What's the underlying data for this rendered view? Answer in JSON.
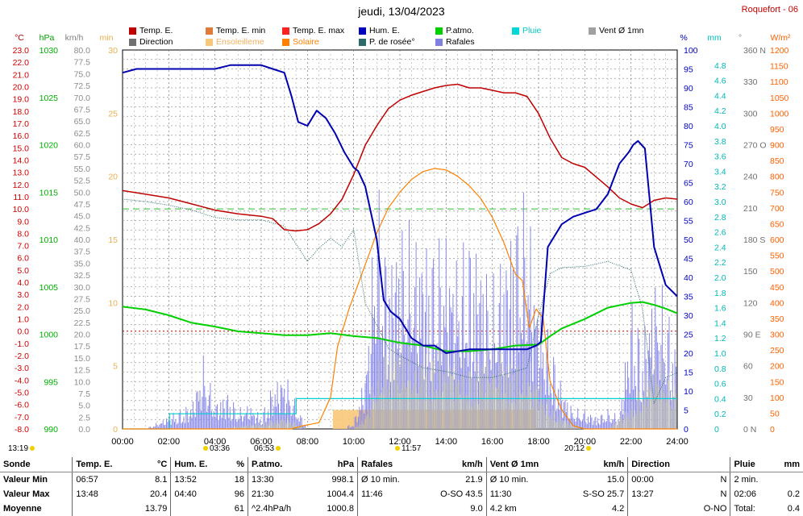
{
  "title": "jeudi, 13/04/2023",
  "station": "Roquefort - 06",
  "legend": [
    {
      "label": "Temp. E.",
      "color": "#c00000"
    },
    {
      "label": "Temp. E. min",
      "color": "#e07b39"
    },
    {
      "label": "Temp. E. max",
      "color": "#ff2020"
    },
    {
      "label": "Hum. E.",
      "color": "#0000c0"
    },
    {
      "label": "P.atmo.",
      "color": "#00d000"
    },
    {
      "label": "Pluie",
      "color": "#00d8d8"
    },
    {
      "label": "Vent Ø 1mn",
      "color": "#a0a0a0"
    },
    {
      "label": "Direction",
      "color": "#707070"
    },
    {
      "label": "Ensoleilleme",
      "color": "#f8c878"
    },
    {
      "label": "Solaire",
      "color": "#ff8000"
    },
    {
      "label": "P. de rosée°",
      "color": "#2a6a6a"
    },
    {
      "label": "Rafales",
      "color": "#8080e0"
    }
  ],
  "axes": {
    "temp_unit": "°C",
    "press_unit": "hPa",
    "wind_unit": "km/h",
    "min_unit": "min",
    "hum_unit": "%",
    "rain_unit": "mm",
    "dir_unit": "°",
    "solar_unit": "W/m²",
    "temp_ticks": [
      "23.0",
      "22.0",
      "21.0",
      "20.0",
      "19.0",
      "18.0",
      "17.0",
      "16.0",
      "15.0",
      "14.0",
      "13.0",
      "12.0",
      "11.0",
      "10.0",
      "9.0",
      "8.0",
      "7.0",
      "6.0",
      "5.0",
      "4.0",
      "3.0",
      "2.0",
      "1.0",
      "0.0",
      "-1.0",
      "-2.0",
      "-3.0",
      "-4.0",
      "-5.0",
      "-6.0",
      "-7.0",
      "-8.0"
    ],
    "press_ticks": [
      "1030",
      "1025",
      "1020",
      "1015",
      "1010",
      "1005",
      "1000",
      "995",
      "990"
    ],
    "wind_ticks": [
      "80.0",
      "77.5",
      "75.0",
      "72.5",
      "70.0",
      "67.5",
      "65.0",
      "62.5",
      "60.0",
      "57.5",
      "55.0",
      "52.5",
      "50.0",
      "47.5",
      "45.0",
      "42.5",
      "40.0",
      "37.5",
      "35.0",
      "32.5",
      "30.0",
      "27.5",
      "25.0",
      "22.5",
      "20.0",
      "17.5",
      "15.0",
      "12.5",
      "10.0",
      "7.5",
      "5.0",
      "2.5",
      "0.0"
    ],
    "min_ticks": [
      "30",
      "25",
      "20",
      "15",
      "10",
      "5",
      "0"
    ],
    "hum_ticks": [
      "100",
      "95",
      "90",
      "85",
      "80",
      "75",
      "70",
      "65",
      "60",
      "55",
      "50",
      "45",
      "40",
      "35",
      "30",
      "25",
      "20",
      "15",
      "10",
      "5",
      "0"
    ],
    "rain_ticks": [
      "4.8",
      "4.6",
      "4.4",
      "4.2",
      "4.0",
      "3.8",
      "3.6",
      "3.4",
      "3.2",
      "3.0",
      "2.8",
      "2.6",
      "2.4",
      "2.2",
      "2.0",
      "1.8",
      "1.6",
      "1.4",
      "1.2",
      "1.0",
      "0.8",
      "0.6",
      "0.4",
      "0.2",
      "0"
    ],
    "dir_ticks": [
      "360 N",
      "330",
      "300",
      "270 O",
      "240",
      "210",
      "180 S",
      "150",
      "120",
      "90 E",
      "60",
      "30",
      "0 N"
    ],
    "solar_ticks": [
      "1200",
      "1150",
      "1100",
      "1050",
      "1000",
      "950",
      "900",
      "850",
      "800",
      "750",
      "700",
      "650",
      "600",
      "550",
      "500",
      "450",
      "400",
      "350",
      "300",
      "250",
      "200",
      "150",
      "100",
      "50",
      "0"
    ],
    "time_ticks": [
      "00:00",
      "02:00",
      "04:00",
      "06:00",
      "08:00",
      "10:00",
      "12:00",
      "14:00",
      "16:00",
      "18:00",
      "20:00",
      "22:00",
      "24:00"
    ]
  },
  "sun": {
    "day_length": "13:19",
    "sunrise_marks": [
      {
        "label": "03:36"
      },
      {
        "label": "06:53"
      },
      {
        "label": "11:57"
      },
      {
        "label": "20:12"
      }
    ]
  },
  "chart_data": {
    "type": "line",
    "x_label": "",
    "x_range": [
      0,
      24
    ],
    "series": [
      {
        "name": "Temp. E.",
        "unit": "°C",
        "x": [
          0,
          1,
          2,
          3,
          4,
          5,
          6,
          6.5,
          7,
          7.5,
          8,
          8.5,
          9,
          9.5,
          10,
          10.5,
          11,
          11.5,
          12,
          12.5,
          13,
          13.5,
          14,
          14.5,
          15,
          15.5,
          16,
          16.5,
          17,
          17.5,
          18,
          18.5,
          19,
          19.5,
          20,
          20.5,
          21,
          21.5,
          22,
          22.5,
          23,
          23.5,
          24
        ],
        "y": [
          11.5,
          11.2,
          10.9,
          10.4,
          9.9,
          9.6,
          9.4,
          9.2,
          8.3,
          8.2,
          8.3,
          8.8,
          9.6,
          10.8,
          12.8,
          15.2,
          16.8,
          18.2,
          18.9,
          19.3,
          19.6,
          19.9,
          20.1,
          20.2,
          19.9,
          19.9,
          19.7,
          19.5,
          19.5,
          19.2,
          17.8,
          15.8,
          14.2,
          13.7,
          13.4,
          12.6,
          11.8,
          10.9,
          10.4,
          10.1,
          10.7,
          10.9,
          10.8
        ]
      },
      {
        "name": "Hum. E.",
        "unit": "%",
        "x": [
          0,
          0.6,
          1,
          2,
          3,
          4,
          4.66,
          5,
          6,
          6.5,
          7,
          7.3,
          7.6,
          8,
          8.4,
          8.8,
          9.2,
          9.6,
          10,
          10.2,
          10.5,
          11,
          11.3,
          11.6,
          12,
          12.5,
          13,
          13.5,
          14,
          15,
          16,
          17,
          17.5,
          17.9,
          18.1,
          18.4,
          19,
          19.5,
          20,
          20.5,
          21,
          21.5,
          21.9,
          22.1,
          22.3,
          22.6,
          23,
          23.5,
          24
        ],
        "y": [
          94,
          95,
          95,
          95,
          95,
          95,
          96,
          96,
          96,
          95,
          94,
          88,
          81,
          80,
          84,
          82,
          78,
          73,
          69,
          68,
          64,
          50,
          34,
          31,
          29,
          24,
          22,
          22,
          20,
          21,
          21,
          21,
          21,
          22,
          23,
          48,
          54,
          56,
          57,
          58,
          62,
          70,
          73,
          75,
          76,
          74,
          48,
          38,
          35
        ]
      },
      {
        "name": "P.atmo.",
        "unit": "hPa",
        "x": [
          0,
          1,
          2,
          3,
          4,
          5,
          6,
          7,
          8,
          9,
          10,
          11,
          12,
          13,
          14,
          15,
          16,
          17,
          18,
          18.5,
          19,
          20,
          21,
          22,
          22.5,
          23,
          23.5,
          24
        ],
        "y": [
          1002.9,
          1002.6,
          1002.0,
          1001.2,
          1000.8,
          1000.3,
          1000.1,
          999.9,
          999.9,
          1000.1,
          999.8,
          999.6,
          999.1,
          998.8,
          998.2,
          998.2,
          998.4,
          998.8,
          998.9,
          999.8,
          1000.6,
          1001.6,
          1002.8,
          1003.3,
          1003.4,
          1003.1,
          1002.7,
          1002.2
        ]
      },
      {
        "name": "P. de rosée°",
        "unit": "°C",
        "x": [
          0,
          1,
          2,
          3,
          4,
          5,
          6,
          7,
          8,
          8.5,
          9,
          9.5,
          10,
          10.5,
          11,
          11.5,
          12,
          13,
          14,
          15,
          16,
          17,
          17.5,
          18,
          18.5,
          19,
          20,
          21,
          22,
          22.5,
          23,
          23.5,
          24
        ],
        "y": [
          10.8,
          10.6,
          10.3,
          9.9,
          9.3,
          9.1,
          9.1,
          8.6,
          5.7,
          6.8,
          7.6,
          6.9,
          8.3,
          2.3,
          0.5,
          -1.4,
          -2.0,
          -3.0,
          -3.3,
          -3.8,
          -3.8,
          -3.3,
          -3.0,
          1.3,
          4.7,
          5.2,
          5.3,
          5.7,
          5.0,
          1.8,
          -5.9,
          -3.8,
          -3.4
        ]
      },
      {
        "name": "Solaire",
        "unit": "W/m²",
        "x": [
          0,
          7.3,
          7.8,
          8.5,
          9,
          9.3,
          9.8,
          10.5,
          11,
          11.5,
          12,
          12.5,
          13,
          13.5,
          14,
          14.5,
          15,
          15.5,
          16,
          16.5,
          17,
          17.3,
          17.6,
          17.9,
          18.2,
          18.5,
          19,
          19.5,
          20,
          20.5,
          24
        ],
        "y": [
          0,
          0,
          10,
          20,
          100,
          260,
          380,
          520,
          620,
          700,
          750,
          790,
          815,
          825,
          820,
          800,
          770,
          730,
          670,
          590,
          490,
          470,
          320,
          380,
          350,
          150,
          60,
          10,
          0,
          0,
          0
        ]
      },
      {
        "name": "Rafales",
        "unit": "km/h",
        "x": [
          0,
          1,
          2,
          3,
          3.5,
          4,
          4.5,
          5,
          5.5,
          6,
          6.5,
          7,
          7.5,
          8,
          8.5,
          9,
          9.5,
          10,
          10.5,
          11,
          11.5,
          12,
          12.5,
          13,
          13.5,
          14,
          14.5,
          15,
          15.5,
          16,
          16.5,
          17,
          17.5,
          18,
          18.5,
          19,
          19.5,
          20,
          20.5,
          21,
          21.5,
          22,
          22.5,
          23,
          23.5,
          24
        ],
        "y": [
          0,
          0,
          2,
          4,
          11,
          4,
          6,
          3,
          4,
          2,
          7,
          9,
          4,
          0,
          0,
          0,
          0,
          1,
          9,
          38,
          26,
          32,
          30,
          30,
          28,
          30,
          26,
          30,
          28,
          22,
          28,
          34,
          36,
          20,
          14,
          7,
          3,
          3,
          2,
          3,
          2,
          20,
          14,
          24,
          20,
          12
        ]
      },
      {
        "name": "Vent Ø 1mn",
        "unit": "km/h",
        "x": [
          0,
          4,
          6,
          7,
          8,
          9,
          10,
          10.5,
          11,
          11.5,
          12,
          12.5,
          13,
          13.5,
          14,
          14.5,
          15,
          15.5,
          16,
          16.5,
          17,
          17.5,
          18,
          18.5,
          19,
          20,
          21,
          22,
          22.5,
          23,
          23.5,
          24
        ],
        "y": [
          0,
          0,
          1,
          2,
          0,
          0,
          0,
          2,
          10,
          14,
          15,
          12,
          13,
          12,
          13,
          12,
          10,
          12,
          14,
          12,
          11,
          12,
          8,
          4,
          2,
          0,
          0,
          4,
          8,
          12,
          10,
          7
        ]
      },
      {
        "name": "Pluie",
        "unit": "mm",
        "x": [
          0,
          2.02,
          2.03,
          7.5,
          7.51,
          8,
          24
        ],
        "y": [
          0,
          0,
          0.2,
          0.2,
          0.4,
          0.4,
          0.4
        ]
      },
      {
        "name": "Ensoleilleme",
        "unit": "min",
        "x": [
          9.1,
          17.9
        ],
        "y": [
          1.5,
          1.5
        ]
      }
    ],
    "dew_reference_line": 10.0
  },
  "summary": {
    "headers": [
      "Sonde",
      "Temp. E.",
      "°C",
      "Hum. E.",
      "%",
      "P.atmo.",
      "hPa",
      "Rafales",
      "km/h",
      "Vent Ø 1mn",
      "km/h",
      "Direction",
      "",
      "Pluie",
      "mm"
    ],
    "rows": [
      {
        "label": "Valeur Min",
        "c": [
          "06:57",
          "8.1",
          "13:52",
          "18",
          "13:30",
          "998.1",
          "Ø 10 min.",
          "21.9",
          "Ø 10 min.",
          "15.0",
          "00:00",
          "N",
          "2 min.",
          ""
        ]
      },
      {
        "label": "Valeur Max",
        "c": [
          "13:48",
          "20.4",
          "04:40",
          "96",
          "21:30",
          "1004.4",
          "11:46",
          "O-SO 43.5",
          "11:30",
          "S-SO 25.7",
          "13:27",
          "N",
          "02:06",
          "0.2"
        ]
      },
      {
        "label": "Moyenne",
        "c": [
          "",
          "13.79",
          "",
          "61",
          "^2.4hPa/h",
          "1000.8",
          "",
          "9.0",
          "4.2 km",
          "4.2",
          "",
          "O-NO",
          "Total:",
          "0.4"
        ]
      }
    ]
  }
}
